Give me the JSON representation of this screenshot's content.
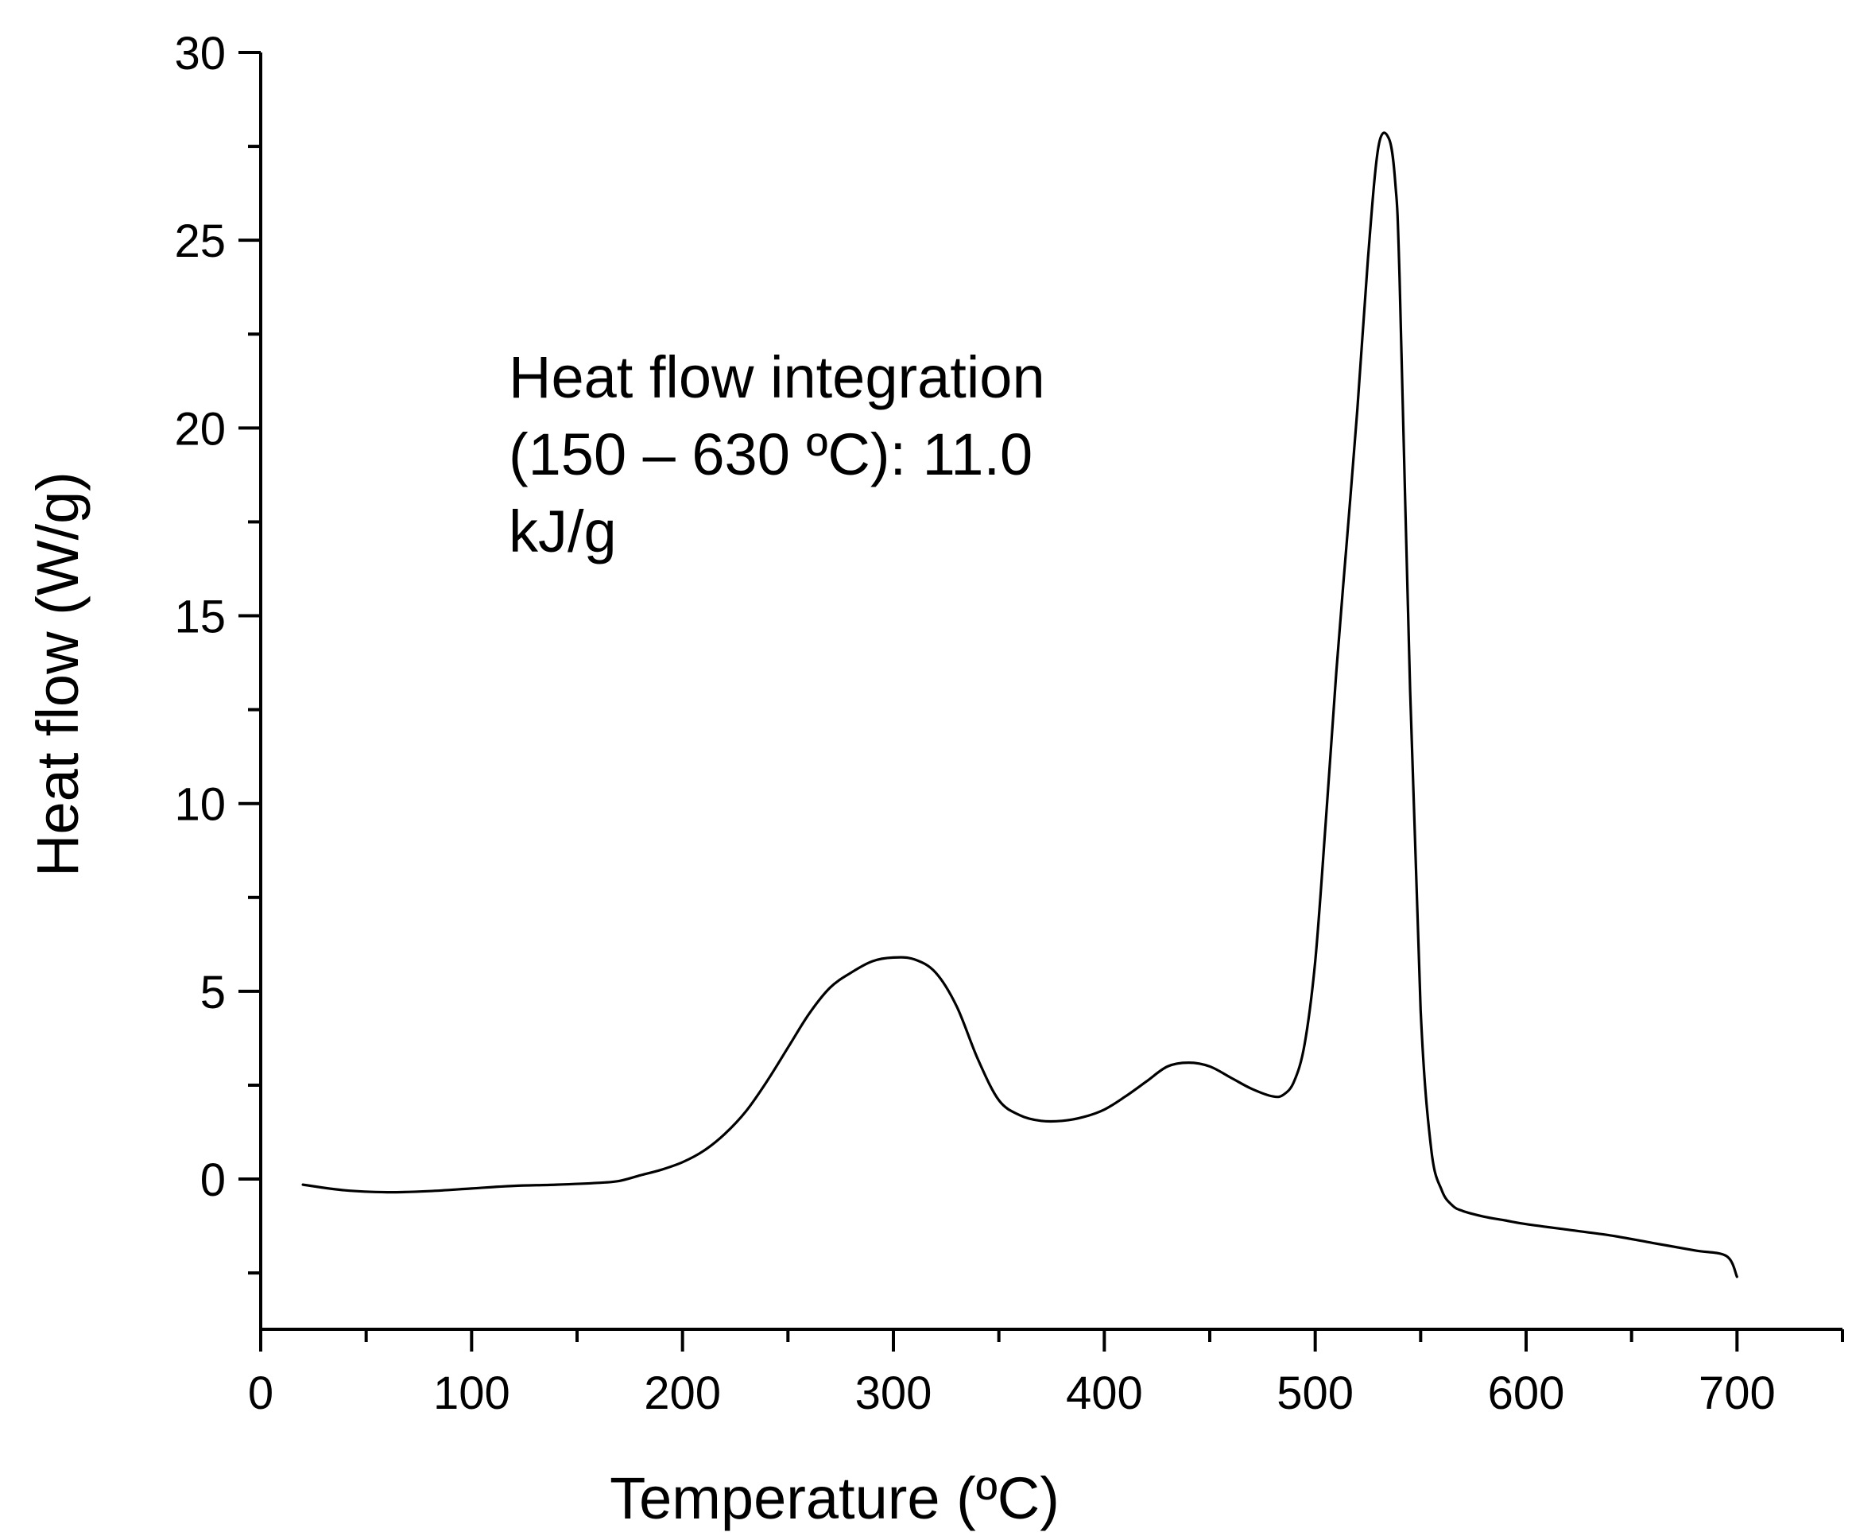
{
  "chart_data": {
    "type": "line",
    "title": "",
    "xlabel": "Temperature (ºC)",
    "ylabel": "Heat flow (W/g)",
    "xlim": [
      0,
      750
    ],
    "ylim": [
      -4,
      30
    ],
    "x_major_ticks": [
      0,
      100,
      200,
      300,
      400,
      500,
      600,
      700
    ],
    "x_minor_ticks": [
      50,
      150,
      250,
      350,
      450,
      550,
      650,
      750
    ],
    "y_major_ticks": [
      0,
      5,
      10,
      15,
      20,
      25,
      30
    ],
    "y_minor_ticks": [
      -2.5,
      2.5,
      7.5,
      12.5,
      17.5,
      22.5,
      27.5
    ],
    "x_tick_labels": [
      "0",
      "100",
      "200",
      "300",
      "400",
      "500",
      "600",
      "700"
    ],
    "y_tick_labels": [
      "0",
      "5",
      "10",
      "15",
      "20",
      "25",
      "30"
    ],
    "grid": false,
    "legend": "none",
    "line_color": "#000000",
    "annotation": [
      "Heat flow integration",
      "(150 – 630 ºC): 11.0",
      "kJ/g"
    ],
    "series": [
      {
        "x": [
          20,
          40,
          60,
          80,
          100,
          120,
          140,
          160,
          170,
          180,
          190,
          200,
          210,
          220,
          230,
          240,
          250,
          260,
          270,
          280,
          290,
          300,
          310,
          320,
          330,
          340,
          350,
          360,
          370,
          380,
          390,
          400,
          410,
          420,
          430,
          440,
          450,
          460,
          470,
          480,
          485,
          490,
          495,
          500,
          505,
          510,
          515,
          520,
          525,
          530,
          535,
          538,
          540,
          545,
          550,
          555,
          560,
          565,
          570,
          580,
          590,
          600,
          620,
          640,
          660,
          680,
          695,
          700
        ],
        "y": [
          -0.15,
          -0.3,
          -0.35,
          -0.32,
          -0.25,
          -0.18,
          -0.15,
          -0.1,
          -0.05,
          0.1,
          0.25,
          0.45,
          0.75,
          1.2,
          1.8,
          2.6,
          3.5,
          4.4,
          5.1,
          5.5,
          5.8,
          5.9,
          5.85,
          5.5,
          4.6,
          3.2,
          2.1,
          1.7,
          1.55,
          1.55,
          1.65,
          1.85,
          2.2,
          2.6,
          3.0,
          3.1,
          3.0,
          2.7,
          2.4,
          2.2,
          2.25,
          2.6,
          3.6,
          5.8,
          9.5,
          13.5,
          17.0,
          20.5,
          24.5,
          27.5,
          27.7,
          26.5,
          24.0,
          13.0,
          4.5,
          0.8,
          -0.3,
          -0.7,
          -0.85,
          -1.0,
          -1.1,
          -1.2,
          -1.35,
          -1.5,
          -1.7,
          -1.9,
          -2.05,
          -2.6
        ]
      }
    ]
  }
}
